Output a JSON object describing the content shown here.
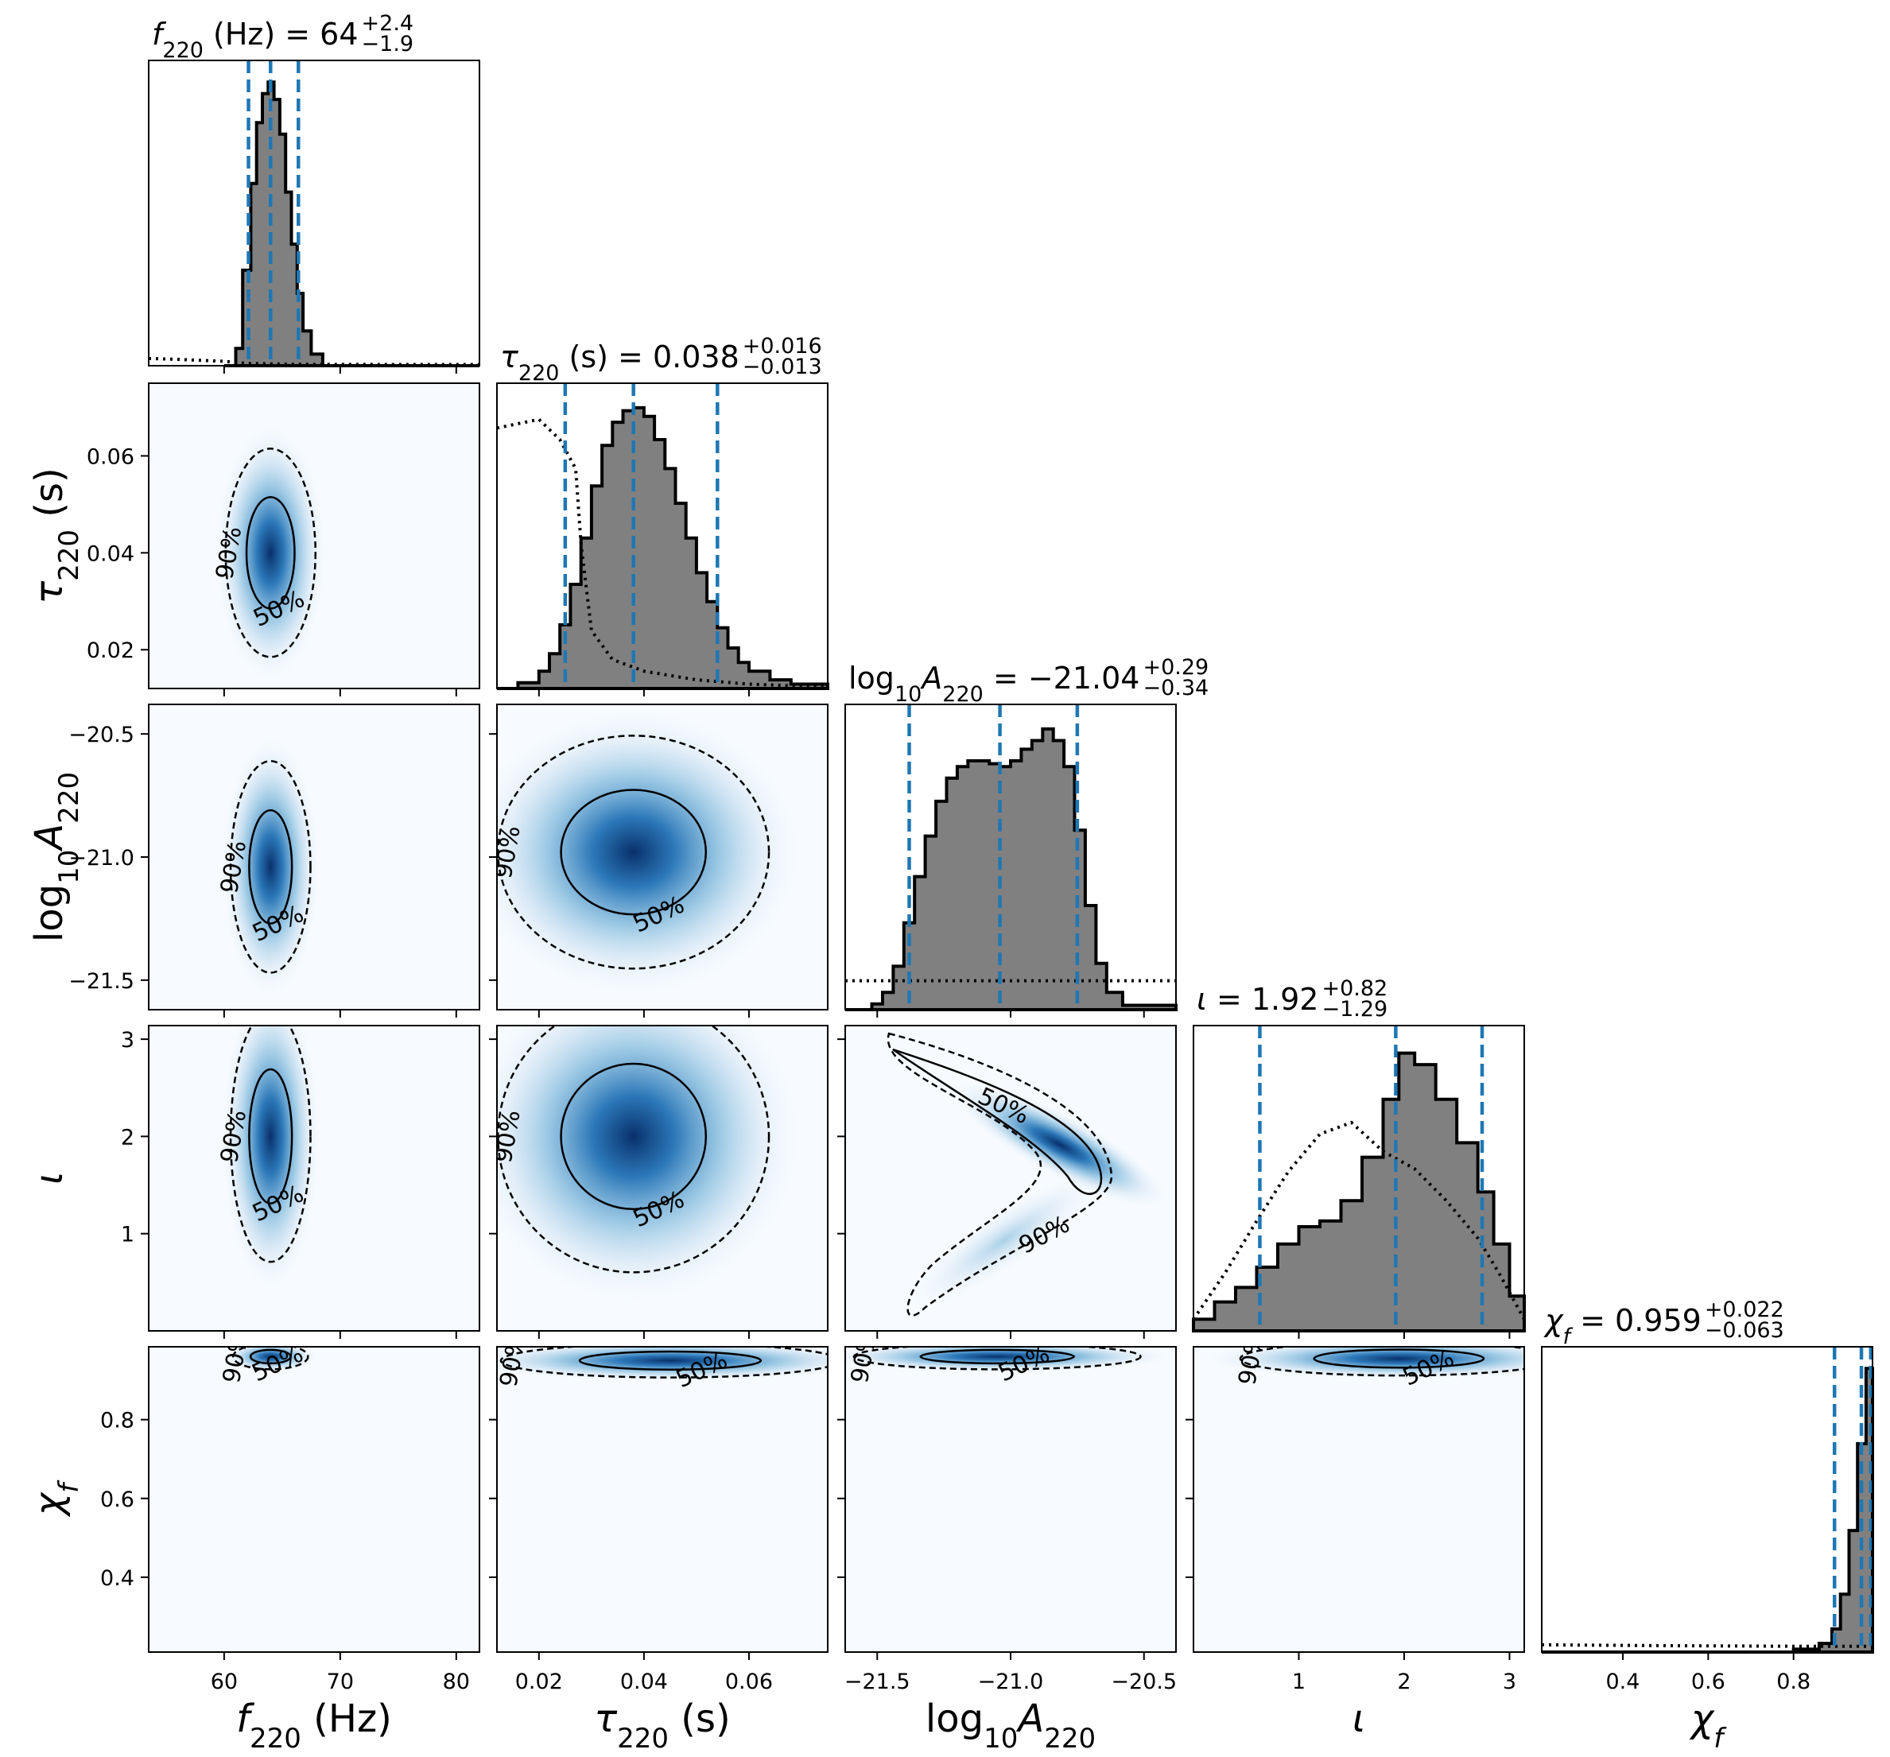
{
  "chart_data": {
    "type": "corner",
    "parameters": [
      {
        "key": "f220",
        "label": "f220 (Hz)",
        "title": "f220 (Hz) = 64 +2.4 −1.9",
        "median": 64,
        "err_plus": 2.4,
        "err_minus": 1.9,
        "range": [
          53.5,
          82.0
        ],
        "ticks": [
          60,
          70,
          80
        ],
        "tick_labels": [
          "60",
          "70",
          "80"
        ],
        "quantile_lines": [
          62.1,
          64.0,
          66.4
        ],
        "histogram": {
          "bins": [
            [
              60.0,
              0.0
            ],
            [
              61.0,
              0.06
            ],
            [
              61.6,
              0.33
            ],
            [
              62.3,
              0.63
            ],
            [
              62.8,
              0.84
            ],
            [
              63.3,
              0.94
            ],
            [
              63.8,
              0.98
            ],
            [
              64.3,
              0.92
            ],
            [
              64.8,
              0.8
            ],
            [
              65.3,
              0.6
            ],
            [
              65.8,
              0.42
            ],
            [
              66.3,
              0.25
            ],
            [
              66.8,
              0.12
            ],
            [
              67.5,
              0.04
            ],
            [
              68.5,
              0.0
            ]
          ],
          "prior": [
            [
              53.5,
              0.025
            ],
            [
              56.0,
              0.022
            ],
            [
              60.0,
              0.015
            ],
            [
              62.0,
              0.008
            ],
            [
              66.0,
              0.005
            ],
            [
              75.0,
              0.004
            ],
            [
              82.0,
              0.004
            ]
          ]
        }
      },
      {
        "key": "tau220",
        "label": "τ220 (s)",
        "title": "τ220 (s) = 0.038 +0.016 −0.013",
        "median": 0.038,
        "err_plus": 0.016,
        "err_minus": 0.013,
        "range": [
          0.012,
          0.075
        ],
        "ticks": [
          0.02,
          0.04,
          0.06
        ],
        "tick_labels": [
          "0.02",
          "0.04",
          "0.06"
        ],
        "quantile_lines": [
          0.025,
          0.038,
          0.054
        ],
        "histogram": {
          "bins": [
            [
              0.012,
              0.0
            ],
            [
              0.016,
              0.02
            ],
            [
              0.02,
              0.06
            ],
            [
              0.022,
              0.12
            ],
            [
              0.024,
              0.22
            ],
            [
              0.026,
              0.36
            ],
            [
              0.028,
              0.52
            ],
            [
              0.03,
              0.7
            ],
            [
              0.032,
              0.84
            ],
            [
              0.034,
              0.92
            ],
            [
              0.036,
              0.96
            ],
            [
              0.038,
              0.97
            ],
            [
              0.04,
              0.94
            ],
            [
              0.042,
              0.86
            ],
            [
              0.044,
              0.76
            ],
            [
              0.046,
              0.64
            ],
            [
              0.048,
              0.52
            ],
            [
              0.05,
              0.4
            ],
            [
              0.052,
              0.3
            ],
            [
              0.054,
              0.21
            ],
            [
              0.056,
              0.14
            ],
            [
              0.058,
              0.09
            ],
            [
              0.06,
              0.06
            ],
            [
              0.064,
              0.03
            ],
            [
              0.068,
              0.015
            ],
            [
              0.075,
              0.0
            ]
          ],
          "prior": [
            [
              0.012,
              0.9
            ],
            [
              0.02,
              0.93
            ],
            [
              0.024,
              0.86
            ],
            [
              0.027,
              0.76
            ],
            [
              0.028,
              0.5
            ],
            [
              0.03,
              0.2
            ],
            [
              0.034,
              0.1
            ],
            [
              0.04,
              0.06
            ],
            [
              0.05,
              0.03
            ],
            [
              0.06,
              0.015
            ],
            [
              0.075,
              0.005
            ]
          ]
        }
      },
      {
        "key": "log10A220",
        "label": "log10A220",
        "title": "log10A220 = −21.04 +0.29 −0.34",
        "median": -21.04,
        "err_plus": 0.29,
        "err_minus": 0.34,
        "range": [
          -21.62,
          -20.38
        ],
        "ticks": [
          -21.5,
          -21.0,
          -20.5
        ],
        "tick_labels": [
          "−21.5",
          "−21.0",
          "−20.5"
        ],
        "quantile_lines": [
          -21.38,
          -21.04,
          -20.75
        ],
        "histogram": {
          "bins": [
            [
              -21.62,
              0.0
            ],
            [
              -21.52,
              0.02
            ],
            [
              -21.48,
              0.06
            ],
            [
              -21.44,
              0.15
            ],
            [
              -21.4,
              0.3
            ],
            [
              -21.36,
              0.46
            ],
            [
              -21.32,
              0.6
            ],
            [
              -21.28,
              0.72
            ],
            [
              -21.24,
              0.8
            ],
            [
              -21.2,
              0.84
            ],
            [
              -21.16,
              0.86
            ],
            [
              -21.12,
              0.86
            ],
            [
              -21.08,
              0.85
            ],
            [
              -21.04,
              0.84
            ],
            [
              -21.0,
              0.86
            ],
            [
              -20.96,
              0.9
            ],
            [
              -20.92,
              0.93
            ],
            [
              -20.88,
              0.97
            ],
            [
              -20.84,
              0.93
            ],
            [
              -20.8,
              0.84
            ],
            [
              -20.76,
              0.62
            ],
            [
              -20.72,
              0.36
            ],
            [
              -20.68,
              0.16
            ],
            [
              -20.64,
              0.06
            ],
            [
              -20.58,
              0.015
            ],
            [
              -20.38,
              0.0
            ]
          ],
          "prior": [
            [
              -21.62,
              0.1
            ],
            [
              -21.3,
              0.1
            ],
            [
              -21.0,
              0.1
            ],
            [
              -20.7,
              0.1
            ],
            [
              -20.38,
              0.1
            ]
          ]
        }
      },
      {
        "key": "iota",
        "label": "ι",
        "title": "ι = 1.92 +0.82 −1.29",
        "median": 1.92,
        "err_plus": 0.82,
        "err_minus": 1.29,
        "range": [
          0.0,
          3.14
        ],
        "ticks": [
          1,
          2,
          3
        ],
        "tick_labels": [
          "1",
          "2",
          "3"
        ],
        "quantile_lines": [
          0.63,
          1.92,
          2.74
        ],
        "histogram": {
          "bins": [
            [
              0.0,
              0.04
            ],
            [
              0.2,
              0.1
            ],
            [
              0.4,
              0.15
            ],
            [
              0.6,
              0.22
            ],
            [
              0.8,
              0.3
            ],
            [
              1.0,
              0.36
            ],
            [
              1.2,
              0.38
            ],
            [
              1.4,
              0.45
            ],
            [
              1.6,
              0.6
            ],
            [
              1.8,
              0.8
            ],
            [
              1.95,
              0.96
            ],
            [
              2.1,
              0.92
            ],
            [
              2.3,
              0.8
            ],
            [
              2.5,
              0.65
            ],
            [
              2.7,
              0.48
            ],
            [
              2.85,
              0.3
            ],
            [
              3.0,
              0.12
            ],
            [
              3.14,
              0.04
            ]
          ],
          "prior": [
            [
              0.0,
              0.04
            ],
            [
              0.3,
              0.2
            ],
            [
              0.6,
              0.38
            ],
            [
              0.9,
              0.55
            ],
            [
              1.2,
              0.68
            ],
            [
              1.5,
              0.72
            ],
            [
              1.8,
              0.62
            ],
            [
              2.1,
              0.56
            ],
            [
              2.4,
              0.45
            ],
            [
              2.7,
              0.32
            ],
            [
              2.9,
              0.2
            ],
            [
              3.14,
              0.04
            ]
          ]
        }
      },
      {
        "key": "chi_f",
        "label": "χf",
        "title": "χf = 0.959 +0.022 −0.063",
        "median": 0.959,
        "err_plus": 0.022,
        "err_minus": 0.063,
        "range": [
          0.21,
          0.985
        ],
        "ticks": [
          0.4,
          0.6,
          0.8
        ],
        "tick_labels": [
          "0.4",
          "0.6",
          "0.8"
        ],
        "quantile_lines": [
          0.896,
          0.959,
          0.981
        ],
        "histogram": {
          "bins": [
            [
              0.21,
              0.0
            ],
            [
              0.8,
              0.01
            ],
            [
              0.86,
              0.03
            ],
            [
              0.89,
              0.08
            ],
            [
              0.91,
              0.2
            ],
            [
              0.93,
              0.42
            ],
            [
              0.95,
              0.72
            ],
            [
              0.97,
              0.98
            ],
            [
              0.985,
              0.95
            ]
          ],
          "prior": [
            [
              0.21,
              0.025
            ],
            [
              0.5,
              0.022
            ],
            [
              0.8,
              0.02
            ],
            [
              0.985,
              0.02
            ]
          ]
        }
      }
    ],
    "contour_levels": [
      "50%",
      "90%"
    ],
    "colors": {
      "histogram_fill": "#808080",
      "quantile_line": "#1f77b4",
      "density_map": "#08519c",
      "background": "#f7fbff"
    },
    "joint_panels": [
      {
        "row": 1,
        "col": 0,
        "peak": [
          64.0,
          0.04
        ],
        "spread": [
          1.8,
          0.01
        ]
      },
      {
        "row": 2,
        "col": 0,
        "peak": [
          64.0,
          -21.04
        ],
        "spread": [
          1.6,
          0.2
        ]
      },
      {
        "row": 2,
        "col": 1,
        "peak": [
          0.038,
          -20.98
        ],
        "spread": [
          0.012,
          0.22
        ]
      },
      {
        "row": 3,
        "col": 0,
        "peak": [
          64.0,
          2.0
        ],
        "spread": [
          1.6,
          0.6
        ]
      },
      {
        "row": 3,
        "col": 1,
        "peak": [
          0.038,
          2.0
        ],
        "spread": [
          0.012,
          0.65
        ]
      },
      {
        "row": 3,
        "col": 2,
        "peak": [
          -20.95,
          1.85
        ],
        "spread": [
          0.3,
          0.6
        ]
      },
      {
        "row": 4,
        "col": 0,
        "peak": [
          64.0,
          0.96
        ],
        "spread": [
          1.5,
          0.015
        ]
      },
      {
        "row": 4,
        "col": 1,
        "peak": [
          0.045,
          0.95
        ],
        "spread": [
          0.015,
          0.02
        ]
      },
      {
        "row": 4,
        "col": 2,
        "peak": [
          -21.05,
          0.96
        ],
        "spread": [
          0.25,
          0.015
        ]
      },
      {
        "row": 4,
        "col": 3,
        "peak": [
          1.95,
          0.955
        ],
        "spread": [
          0.7,
          0.02
        ]
      }
    ]
  }
}
